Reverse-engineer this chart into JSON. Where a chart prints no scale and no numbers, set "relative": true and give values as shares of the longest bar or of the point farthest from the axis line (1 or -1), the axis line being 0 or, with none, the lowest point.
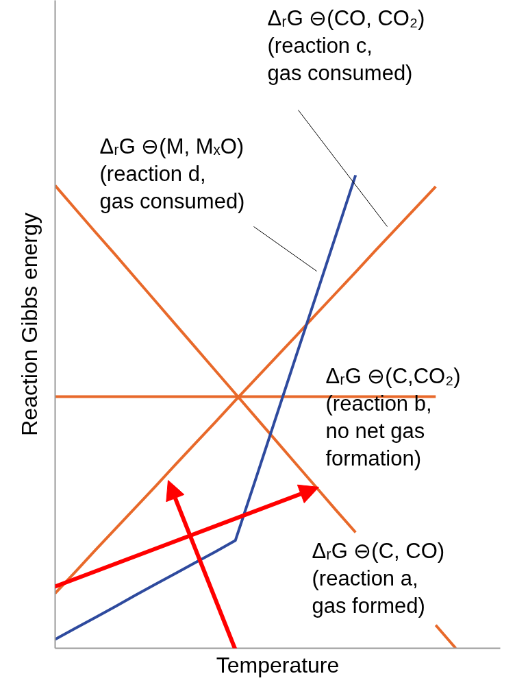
{
  "chart_data": {
    "type": "line",
    "relative": true,
    "xlabel": "Temperature",
    "ylabel": "Reaction Gibbs energy",
    "line_style": "solid",
    "categories": [
      null,
      null,
      null,
      null,
      null,
      null,
      null,
      null,
      null,
      null,
      null,
      null,
      null,
      null,
      null,
      null,
      null,
      null,
      null,
      null,
      null
    ],
    "series": [
      {
        "color": "#e8692a",
        "values": [
          0.978,
          0.929,
          0.88,
          0.832,
          0.783,
          0.734,
          0.685,
          0.636,
          0.587,
          0.538,
          0.489,
          0.44,
          0.391,
          0.342,
          0.293,
          0.245,
          null,
          null,
          null,
          0.049,
          0
        ]
      },
      {
        "color": "#e8692a",
        "values": [
          0.532,
          0.532,
          0.532,
          0.532,
          0.532,
          0.532,
          0.532,
          0.532,
          0.532,
          0.532,
          0.532,
          0.532,
          0.532,
          0.532,
          0.532,
          0.532,
          0.532,
          0.532,
          0.532,
          0.532,
          null
        ]
      },
      {
        "color": "#e8692a",
        "values": [
          0.116,
          0.161,
          0.207,
          0.252,
          0.297,
          0.342,
          0.388,
          0.433,
          0.478,
          0.524,
          0.569,
          0.614,
          0.659,
          0.705,
          0.75,
          0.795,
          0.841,
          0.886,
          0.931,
          0.976,
          null
        ]
      },
      {
        "color": "#2e4a9e",
        "values": [
          0.019,
          0.042,
          0.065,
          0.088,
          0.112,
          0.135,
          0.158,
          0.181,
          0.204,
          0.228,
          0.356,
          0.485,
          0.614,
          0.742,
          0.871,
          1.0,
          null,
          null,
          null,
          null,
          null
        ]
      }
    ],
    "annotations": [
      "ΔᵣG ⊖(CO, CO₂)\n(reaction c,\ngas consumed)",
      "ΔᵣG ⊖(M, MₓO)\n(reaction d,\ngas consumed)",
      "ΔᵣG ⊖(C,CO₂)\n(reaction b,\nno net gas\nformation)",
      "ΔᵣG ⊖(C, CO)\n(reaction a,\ngas formed)"
    ]
  }
}
